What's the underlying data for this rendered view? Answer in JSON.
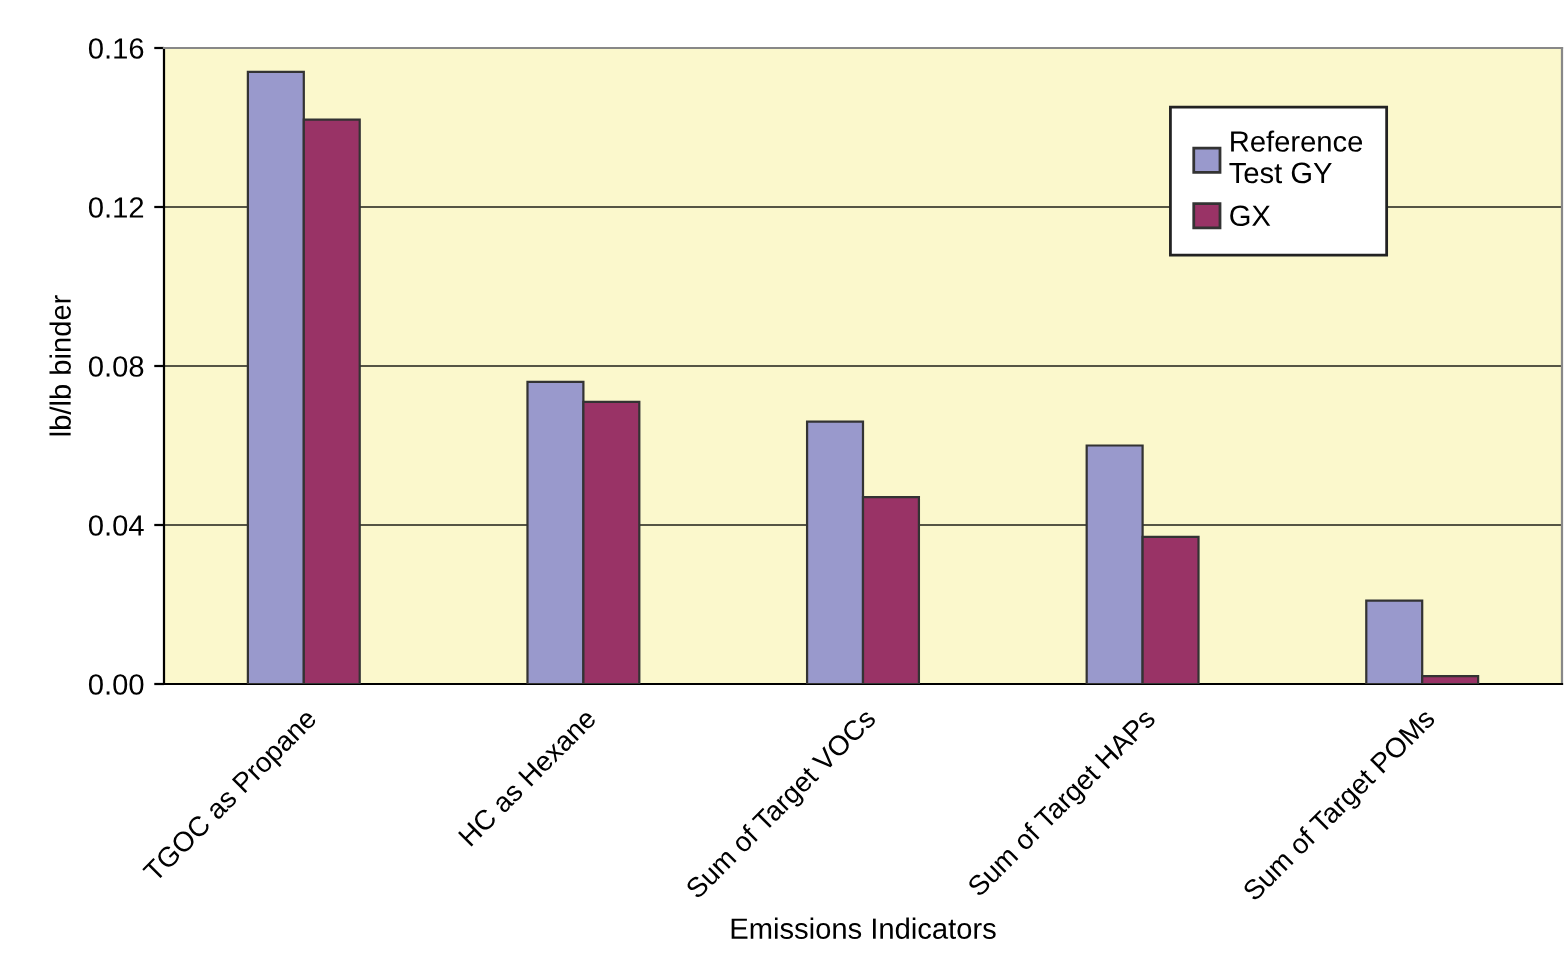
{
  "chart_data": {
    "type": "bar",
    "xlabel": "Emissions Indicators",
    "ylabel": "lb/lb binder",
    "categories": [
      "TGOC as Propane",
      "HC as Hexane",
      "Sum of Target VOCs",
      "Sum of Target HAPs",
      "Sum of Target POMs"
    ],
    "series": [
      {
        "name": "Reference\nTest GY",
        "color": "#9999cc",
        "values": [
          0.154,
          0.076,
          0.066,
          0.06,
          0.021
        ]
      },
      {
        "name": "GX",
        "color": "#993366",
        "values": [
          0.142,
          0.071,
          0.047,
          0.037,
          0.002
        ]
      }
    ],
    "ylim": [
      0,
      0.16
    ],
    "yticks": [
      {
        "value": 0,
        "label": "0.00"
      },
      {
        "value": 0.04,
        "label": "0.04"
      },
      {
        "value": 0.08,
        "label": "0.08"
      },
      {
        "value": 0.12,
        "label": "0.12"
      },
      {
        "value": 0.16,
        "label": "0.16"
      }
    ],
    "grid": "y",
    "legend": "top right"
  }
}
